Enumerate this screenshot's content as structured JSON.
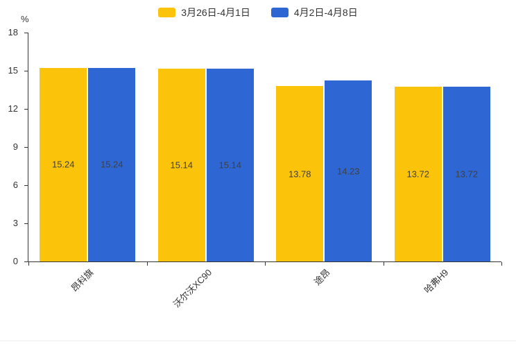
{
  "chart_data": {
    "type": "bar",
    "title": "",
    "unit": "%",
    "ylabel": "%",
    "xlabel": "",
    "ylim": [
      0,
      18
    ],
    "yticks": [
      0,
      3,
      6,
      9,
      12,
      15,
      18
    ],
    "grid": false,
    "legend_position": "top",
    "categories": [
      "昂科旗",
      "沃尔沃XC90",
      "途昂",
      "哈弗H9"
    ],
    "series": [
      {
        "name": "3月26日-4月1日",
        "color": "#FCC30B",
        "values": [
          15.24,
          15.14,
          13.78,
          13.72
        ]
      },
      {
        "name": "4月2日-4月8日",
        "color": "#2E67D3",
        "values": [
          15.24,
          15.14,
          14.23,
          13.72
        ]
      }
    ],
    "value_label_color": "#404040",
    "axis_color": "#333333"
  }
}
